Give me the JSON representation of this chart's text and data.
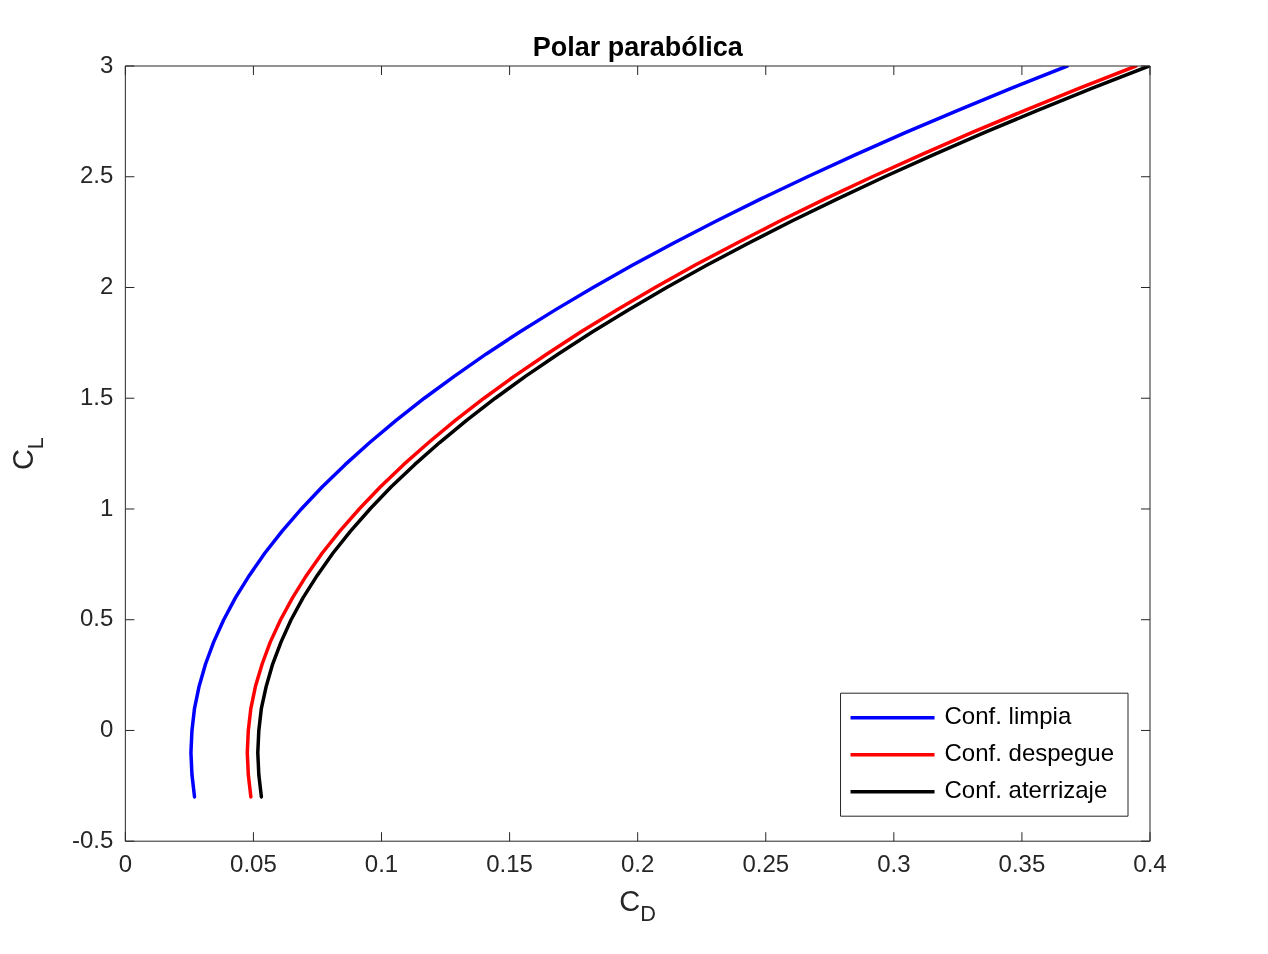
{
  "chart_data": {
    "type": "line",
    "title": "Polar parabólica",
    "xlabel": "C$_{D}$",
    "ylabel": "C$_{L}$",
    "xlim": [
      0,
      0.4
    ],
    "xticks": [
      0,
      0.05,
      0.1,
      0.15,
      0.2,
      0.25,
      0.3,
      0.35,
      0.4
    ],
    "ylim": [
      -0.5,
      3
    ],
    "yticks": [
      -0.5,
      0,
      0.5,
      1,
      1.5,
      2,
      2.5,
      3
    ],
    "legend": "bottom right",
    "series": [
      {
        "name": "Conf. limpia",
        "color": "#0000ff",
        "x": [
          0.027,
          0.026,
          0.0256,
          0.026,
          0.027,
          0.0288,
          0.0313,
          0.0345,
          0.0384,
          0.043,
          0.0484,
          0.0544,
          0.0612,
          0.0687,
          0.0769,
          0.0858,
          0.0954,
          0.1057,
          0.1167,
          0.1285,
          0.1409,
          0.1541,
          0.168,
          0.1826,
          0.1979,
          0.2139,
          0.2307,
          0.2481,
          0.2663,
          0.2851,
          0.3047,
          0.325,
          0.346,
          0.3677
        ],
        "values": [
          -0.3,
          -0.2,
          -0.1,
          0,
          0.1,
          0.2,
          0.3,
          0.4,
          0.5,
          0.6,
          0.7,
          0.8,
          0.9,
          1,
          1.1,
          1.2,
          1.3,
          1.4,
          1.5,
          1.6,
          1.7,
          1.8,
          1.9,
          2,
          2.1,
          2.2,
          2.3,
          2.4,
          2.5,
          2.6,
          2.7,
          2.8,
          2.9,
          3
        ]
      },
      {
        "name": "Conf. despegue",
        "color": "#ff0000",
        "x": [
          0.049,
          0.048,
          0.0476,
          0.048,
          0.049,
          0.0508,
          0.0534,
          0.0566,
          0.0606,
          0.0653,
          0.0707,
          0.0768,
          0.0837,
          0.0913,
          0.0996,
          0.1086,
          0.1184,
          0.1288,
          0.14,
          0.1519,
          0.1646,
          0.1779,
          0.192,
          0.2068,
          0.2223,
          0.2386,
          0.2555,
          0.2732,
          0.2916,
          0.3108,
          0.3306,
          0.3512,
          0.3725,
          0.3945
        ],
        "values": [
          -0.3,
          -0.2,
          -0.1,
          0,
          0.1,
          0.2,
          0.3,
          0.4,
          0.5,
          0.6,
          0.7,
          0.8,
          0.9,
          1,
          1.1,
          1.2,
          1.3,
          1.4,
          1.5,
          1.6,
          1.7,
          1.8,
          1.9,
          2,
          2.1,
          2.2,
          2.3,
          2.4,
          2.5,
          2.6,
          2.7,
          2.8,
          2.9,
          3
        ]
      },
      {
        "name": "Conf. aterrizaje",
        "color": "#000000",
        "x": [
          0.0531,
          0.0521,
          0.0517,
          0.0521,
          0.0531,
          0.055,
          0.0575,
          0.0608,
          0.0647,
          0.0694,
          0.0749,
          0.081,
          0.0879,
          0.0955,
          0.1038,
          0.1129,
          0.1227,
          0.1332,
          0.1444,
          0.1563,
          0.169,
          0.1824,
          0.1965,
          0.2113,
          0.2269,
          0.2432,
          0.2602,
          0.278,
          0.2964,
          0.3156,
          0.3355,
          0.3561,
          0.3775,
          0.3996
        ],
        "values": [
          -0.3,
          -0.2,
          -0.1,
          0,
          0.1,
          0.2,
          0.3,
          0.4,
          0.5,
          0.6,
          0.7,
          0.8,
          0.9,
          1,
          1.1,
          1.2,
          1.3,
          1.4,
          1.5,
          1.6,
          1.7,
          1.8,
          1.9,
          2,
          2.1,
          2.2,
          2.3,
          2.4,
          2.5,
          2.6,
          2.7,
          2.8,
          2.9,
          3
        ]
      }
    ]
  }
}
